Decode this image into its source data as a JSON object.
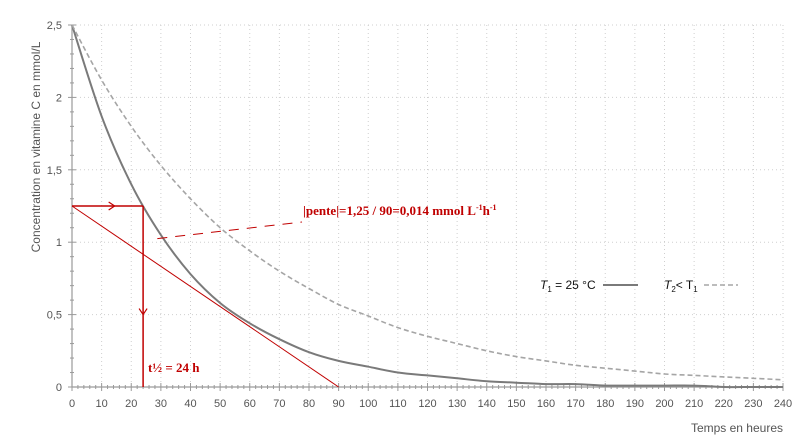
{
  "chart_data": {
    "type": "line",
    "xlabel": "Temps en heures",
    "ylabel": "Concentration en vitamine C en mmol/L",
    "xlim": [
      0,
      240
    ],
    "ylim": [
      0,
      2.5
    ],
    "x_ticks": [
      "0",
      "10",
      "20",
      "30",
      "40",
      "50",
      "60",
      "70",
      "80",
      "90",
      "100",
      "110",
      "120",
      "130",
      "140",
      "150",
      "160",
      "170",
      "180",
      "190",
      "200",
      "210",
      "220",
      "230",
      "240"
    ],
    "y_ticks": [
      {
        "value": 0,
        "label": "0"
      },
      {
        "value": 0.5,
        "label": "0,5"
      },
      {
        "value": 1,
        "label": "1"
      },
      {
        "value": 1.5,
        "label": "1,5"
      },
      {
        "value": 2,
        "label": "2"
      },
      {
        "value": 2.5,
        "label": "2,5"
      }
    ],
    "x": [
      0,
      10,
      20,
      30,
      40,
      50,
      60,
      70,
      80,
      90,
      100,
      110,
      120,
      130,
      140,
      150,
      160,
      170,
      180,
      190,
      200,
      210,
      220,
      230,
      240
    ],
    "series": [
      {
        "legend_main": "T",
        "legend_sub": "1",
        "legend_rest": " = 25 °C",
        "color": "#7a7a7a",
        "style": "solid",
        "values": [
          2.5,
          1.87,
          1.4,
          1.05,
          0.78,
          0.58,
          0.44,
          0.33,
          0.24,
          0.18,
          0.14,
          0.1,
          0.08,
          0.06,
          0.04,
          0.03,
          0.02,
          0.02,
          0.01,
          0.01,
          0.01,
          0.01,
          0,
          0,
          0
        ]
      },
      {
        "legend_main": "T",
        "legend_sub": "2",
        "legend_rest": "< T",
        "legend_sub2": "1",
        "color": "#a5a5a5",
        "style": "dashed",
        "values": [
          2.5,
          2.12,
          1.8,
          1.53,
          1.3,
          1.1,
          0.94,
          0.8,
          0.68,
          0.57,
          0.49,
          0.41,
          0.35,
          0.3,
          0.25,
          0.21,
          0.18,
          0.15,
          0.13,
          0.11,
          0.09,
          0.08,
          0.07,
          0.06,
          0.05
        ]
      }
    ],
    "annotations": {
      "color": "#c00000",
      "tangent": {
        "x1": 0,
        "y1": 1.25,
        "x2": 90,
        "y2": 0
      },
      "half_conc": 1.25,
      "half_time": 24,
      "slope_main": "|pente|=1,25 / 90=0,014 mmol L",
      "slope_sup1": "-1",
      "slope_mid": "h",
      "slope_sup2": "-1",
      "half_life_text": "t½ = 24 h"
    }
  }
}
